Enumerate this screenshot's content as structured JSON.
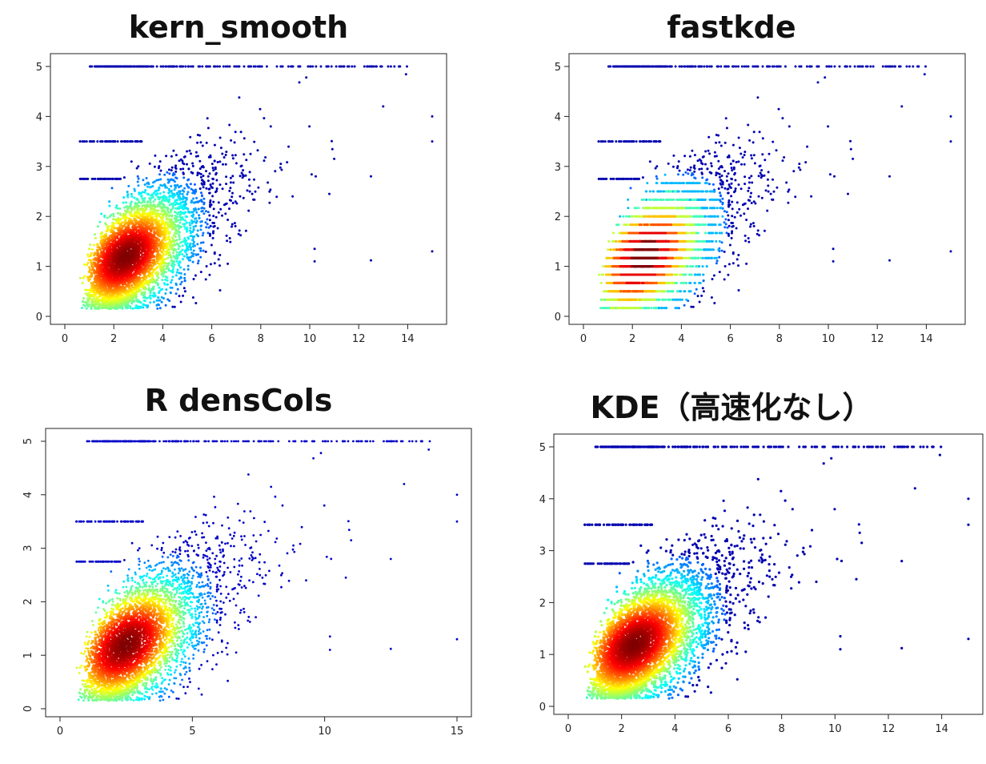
{
  "chart_data": [
    {
      "type": "scatter",
      "title": "kern_smooth",
      "xlim": [
        0,
        15
      ],
      "ylim": [
        0,
        5
      ],
      "xticks": [
        0,
        2,
        4,
        6,
        8,
        10,
        12,
        14
      ],
      "yticks": [
        0,
        1,
        2,
        3,
        4,
        5
      ],
      "colormap": "jet",
      "point_color": "#0000b0",
      "n_points": 1800
    },
    {
      "type": "scatter",
      "title": "fastkde",
      "xlim": [
        0,
        15
      ],
      "ylim": [
        0,
        5
      ],
      "xticks": [
        0,
        2,
        4,
        6,
        8,
        10,
        12,
        14
      ],
      "yticks": [
        0,
        1,
        2,
        3,
        4,
        5
      ],
      "colormap": "jet",
      "point_color": "#0000b0",
      "n_points": 1800
    },
    {
      "type": "scatter",
      "title": "R densCols",
      "xlim": [
        0,
        15
      ],
      "ylim": [
        0,
        5
      ],
      "xticks": [
        0,
        5,
        10,
        15
      ],
      "yticks": [
        0,
        1,
        2,
        3,
        4,
        5
      ],
      "colormap": "jet",
      "point_color": "#0000c8",
      "n_points": 1800
    },
    {
      "type": "scatter",
      "title": "KDE（高速化なし）",
      "xlim": [
        0,
        15
      ],
      "ylim": [
        0,
        5
      ],
      "xticks": [
        0,
        2,
        4,
        6,
        8,
        10,
        12,
        14
      ],
      "yticks": [
        0,
        1,
        2,
        3,
        4,
        5
      ],
      "colormap": "jet",
      "point_color": "#0000b0",
      "n_points": 1800
    }
  ]
}
